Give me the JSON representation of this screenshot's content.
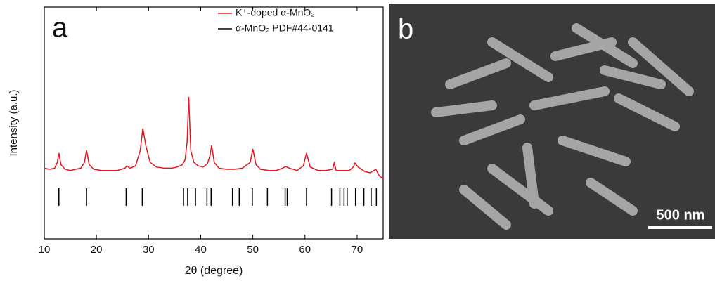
{
  "chart_data": {
    "type": "line",
    "label": "a",
    "x_label": "2θ (degree)",
    "y_label": "Intensity (a.u.)",
    "xlim": [
      10,
      75
    ],
    "xticks": [
      10,
      20,
      30,
      40,
      50,
      60,
      70
    ],
    "ylim": [
      0,
      100
    ],
    "x": [
      10,
      11,
      12,
      12.5,
      12.8,
      13.2,
      14,
      15,
      16,
      17,
      17.7,
      18.1,
      18.6,
      19.5,
      21,
      22.5,
      24,
      25.5,
      25.8,
      26.5,
      27.5,
      28.4,
      28.9,
      29.5,
      30.3,
      31.5,
      33,
      34.5,
      35.5,
      36.5,
      37,
      37.4,
      37.7,
      38.1,
      38.7,
      39.5,
      40.5,
      41.3,
      41.8,
      42.1,
      42.6,
      43.5,
      45,
      46.5,
      48,
      49.5,
      50,
      50.6,
      51.5,
      53,
      54.5,
      55.7,
      56.3,
      57,
      58.5,
      59.7,
      60.3,
      61,
      62.5,
      64,
      65.3,
      65.6,
      66,
      67.5,
      68.5,
      69.3,
      69.6,
      70.2,
      71.5,
      72.5,
      73.6,
      74.3,
      75
    ],
    "series": [
      {
        "name": "K⁺-doped α-MnO₂",
        "color": "#e8141b",
        "values": [
          30.5,
          30,
          30.5,
          33,
          37,
          32,
          30,
          29.5,
          30,
          30.5,
          33,
          38.2,
          32,
          30,
          29.5,
          29.5,
          29.5,
          30.5,
          31.5,
          30.5,
          31.5,
          38,
          47.6,
          40,
          33,
          31,
          30.5,
          30.5,
          31,
          32,
          34,
          42,
          61.2,
          38,
          33,
          31.5,
          31,
          32.5,
          36,
          40.3,
          33,
          30.5,
          30,
          30,
          30.5,
          33,
          38.8,
          32,
          30,
          29.5,
          29.5,
          30.5,
          31.2,
          30.5,
          29.5,
          31.5,
          37,
          31,
          29.5,
          29.5,
          30,
          32.7,
          29.5,
          29.5,
          29.5,
          31,
          32.7,
          31,
          29,
          28.5,
          30,
          27,
          26
        ]
      }
    ],
    "reference": {
      "name": "α-MnO₂ PDF#44-0141",
      "color": "#000000",
      "positions": [
        12.8,
        18.1,
        25.7,
        28.8,
        36.7,
        37.5,
        39.0,
        41.2,
        42.0,
        46.1,
        47.4,
        49.9,
        52.8,
        56.2,
        56.6,
        60.3,
        65.1,
        66.7,
        67.5,
        68.1,
        69.7,
        71.3,
        72.7,
        73.7
      ]
    }
  },
  "image": {
    "label": "b",
    "scale_bar": "500 nm"
  }
}
